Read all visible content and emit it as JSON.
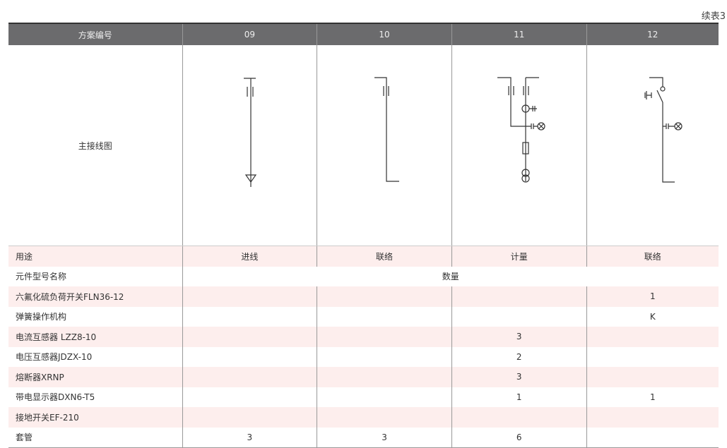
{
  "continued_label": "续表3",
  "header": [
    "方案编号",
    "09",
    "10",
    "11",
    "12"
  ],
  "diagram_row_label": "主接线图",
  "diagrams": [
    "incoming-feeder",
    "bus-tie",
    "metering",
    "bus-tie-load-switch"
  ],
  "usage": {
    "label": "用途",
    "values": [
      "进线",
      "联络",
      "计量",
      "联络"
    ]
  },
  "component_header": {
    "label": "元件型号名称",
    "span": "数量"
  },
  "rows": [
    {
      "label": "六氟化硫负荷开关FLN36-12",
      "values": [
        "",
        "",
        "",
        "1"
      ]
    },
    {
      "label": "弹簧操作机构",
      "values": [
        "",
        "",
        "",
        "K"
      ]
    },
    {
      "label": "电流互感器 LZZ8-10",
      "values": [
        "",
        "",
        "3",
        ""
      ]
    },
    {
      "label": " 电压互感器JDZX-10",
      "values": [
        "",
        "",
        "2",
        ""
      ]
    },
    {
      "label": "熔断器XRNP",
      "values": [
        "",
        "",
        "3",
        ""
      ]
    },
    {
      "label": "带电显示器DXN6-T5",
      "values": [
        "",
        "",
        "1",
        "1"
      ]
    },
    {
      "label": "接地开关EF-210",
      "values": [
        "",
        "",
        "",
        ""
      ]
    },
    {
      "label": "套管",
      "values": [
        "3",
        "3",
        "6",
        ""
      ]
    }
  ],
  "colors": {
    "header_bg": "#6b6b6d",
    "stripe": "#fdeeed"
  }
}
